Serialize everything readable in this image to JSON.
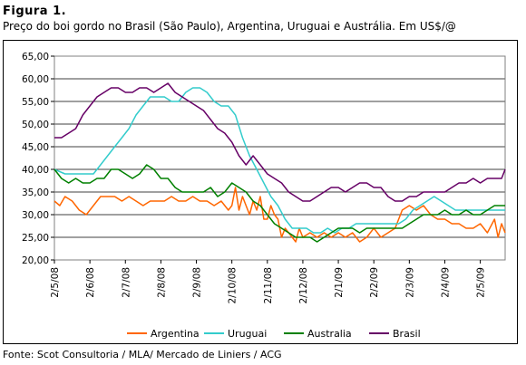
{
  "figure": {
    "label": "Figura 1.",
    "caption": "Preço do boi gordo no Brasil (São Paulo), Argentina, Uruguai e Austrália. Em US$/@",
    "source": "Fonte: Scot Consultoria / MLA/ Mercado de Liniers / ACG"
  },
  "chart_data": {
    "type": "line",
    "title": "",
    "xlabel": "",
    "ylabel": "",
    "ylim": [
      20,
      65
    ],
    "y_ticks": [
      "20,00",
      "25,00",
      "30,00",
      "35,00",
      "40,00",
      "45,00",
      "50,00",
      "55,00",
      "60,00",
      "65,00"
    ],
    "y_tick_values": [
      20,
      25,
      30,
      35,
      40,
      45,
      50,
      55,
      60,
      65
    ],
    "x_ticks": [
      "2/5/08",
      "2/6/08",
      "2/7/08",
      "2/8/08",
      "2/9/08",
      "2/10/08",
      "2/11/08",
      "2/12/08",
      "2/1/09",
      "2/2/09",
      "2/3/09",
      "2/4/09",
      "2/5/09"
    ],
    "x_tick_index": [
      0,
      1,
      2,
      3,
      4,
      5,
      6,
      7,
      8,
      9,
      10,
      11,
      12
    ],
    "x_range": [
      0,
      12.7
    ],
    "grid": "horizontal",
    "legend_position": "bottom",
    "series": [
      {
        "name": "Argentina",
        "color": "#FF6600",
        "x": [
          0,
          0.15,
          0.3,
          0.5,
          0.7,
          0.9,
          1.1,
          1.3,
          1.5,
          1.7,
          1.9,
          2.1,
          2.3,
          2.5,
          2.7,
          2.9,
          3.1,
          3.3,
          3.5,
          3.7,
          3.9,
          4.1,
          4.3,
          4.5,
          4.7,
          4.9,
          5.0,
          5.1,
          5.2,
          5.3,
          5.4,
          5.5,
          5.6,
          5.7,
          5.8,
          5.9,
          6.0,
          6.1,
          6.2,
          6.3,
          6.4,
          6.5,
          6.6,
          6.7,
          6.8,
          6.9,
          7.0,
          7.2,
          7.4,
          7.6,
          7.8,
          8.0,
          8.2,
          8.4,
          8.6,
          8.8,
          9.0,
          9.2,
          9.4,
          9.6,
          9.8,
          10.0,
          10.2,
          10.4,
          10.6,
          10.8,
          11.0,
          11.2,
          11.4,
          11.6,
          11.8,
          12.0,
          12.2,
          12.4,
          12.5,
          12.6,
          12.7
        ],
        "y": [
          33,
          32,
          34,
          33,
          31,
          30,
          32,
          34,
          34,
          34,
          33,
          34,
          33,
          32,
          33,
          33,
          33,
          34,
          33,
          33,
          34,
          33,
          33,
          32,
          33,
          31,
          32,
          36,
          31,
          34,
          32,
          30,
          33,
          31,
          34,
          29,
          29,
          32,
          30,
          29,
          25,
          27,
          26,
          25,
          24,
          27,
          25,
          26,
          25,
          26,
          25,
          26,
          25,
          26,
          24,
          25,
          27,
          25,
          26,
          27,
          31,
          32,
          31,
          32,
          30,
          29,
          29,
          28,
          28,
          27,
          27,
          28,
          26,
          29,
          25,
          28,
          26
        ]
      },
      {
        "name": "Uruguai",
        "color": "#33CCCC",
        "x": [
          0,
          0.3,
          0.6,
          0.9,
          1.1,
          1.3,
          1.5,
          1.7,
          1.9,
          2.1,
          2.3,
          2.5,
          2.7,
          2.9,
          3.1,
          3.3,
          3.5,
          3.7,
          3.9,
          4.1,
          4.3,
          4.5,
          4.7,
          4.9,
          5.1,
          5.3,
          5.5,
          5.7,
          5.9,
          6.1,
          6.3,
          6.5,
          6.7,
          6.9,
          7.1,
          7.3,
          7.5,
          7.7,
          7.9,
          8.1,
          8.3,
          8.5,
          8.7,
          8.9,
          9.1,
          9.3,
          9.5,
          9.7,
          9.9,
          10.1,
          10.3,
          10.5,
          10.7,
          10.9,
          11.1,
          11.3,
          11.5,
          11.7,
          11.9,
          12.1,
          12.3,
          12.5,
          12.7
        ],
        "y": [
          40,
          39,
          39,
          39,
          39,
          41,
          43,
          45,
          47,
          49,
          52,
          54,
          56,
          56,
          56,
          55,
          55,
          57,
          58,
          58,
          57,
          55,
          54,
          54,
          52,
          47,
          43,
          40,
          37,
          34,
          32,
          29,
          27,
          27,
          27,
          26,
          26,
          27,
          26,
          27,
          27,
          28,
          28,
          28,
          28,
          28,
          28,
          28,
          29,
          31,
          32,
          33,
          34,
          33,
          32,
          31,
          31,
          31,
          31,
          31,
          31,
          31,
          31
        ]
      },
      {
        "name": "Australia",
        "color": "#008000",
        "x": [
          0,
          0.2,
          0.4,
          0.6,
          0.8,
          1.0,
          1.2,
          1.4,
          1.6,
          1.8,
          2.0,
          2.2,
          2.4,
          2.6,
          2.8,
          3.0,
          3.2,
          3.4,
          3.6,
          3.8,
          4.0,
          4.2,
          4.4,
          4.6,
          4.8,
          5.0,
          5.2,
          5.4,
          5.6,
          5.8,
          6.0,
          6.2,
          6.4,
          6.6,
          6.8,
          7.0,
          7.2,
          7.4,
          7.6,
          7.8,
          8.0,
          8.2,
          8.4,
          8.6,
          8.8,
          9.0,
          9.2,
          9.4,
          9.6,
          9.8,
          10.0,
          10.2,
          10.4,
          10.6,
          10.8,
          11.0,
          11.2,
          11.4,
          11.6,
          11.8,
          12.0,
          12.2,
          12.4,
          12.6,
          12.7
        ],
        "y": [
          40,
          38,
          37,
          38,
          37,
          37,
          38,
          38,
          40,
          40,
          39,
          38,
          39,
          41,
          40,
          38,
          38,
          36,
          35,
          35,
          35,
          35,
          36,
          34,
          35,
          37,
          36,
          35,
          33,
          32,
          30,
          28,
          27,
          26,
          25,
          25,
          25,
          24,
          25,
          26,
          27,
          27,
          27,
          26,
          27,
          27,
          27,
          27,
          27,
          27,
          28,
          29,
          30,
          30,
          30,
          31,
          30,
          30,
          31,
          30,
          30,
          31,
          32,
          32,
          32
        ]
      },
      {
        "name": "Brasil",
        "color": "#660066",
        "x": [
          0,
          0.2,
          0.4,
          0.6,
          0.8,
          1.0,
          1.2,
          1.4,
          1.6,
          1.8,
          2.0,
          2.2,
          2.4,
          2.6,
          2.8,
          3.0,
          3.2,
          3.4,
          3.6,
          3.8,
          4.0,
          4.2,
          4.4,
          4.6,
          4.8,
          5.0,
          5.2,
          5.4,
          5.6,
          5.8,
          6.0,
          6.2,
          6.4,
          6.6,
          6.8,
          7.0,
          7.2,
          7.4,
          7.6,
          7.8,
          8.0,
          8.2,
          8.4,
          8.6,
          8.8,
          9.0,
          9.2,
          9.4,
          9.6,
          9.8,
          10.0,
          10.2,
          10.4,
          10.6,
          10.8,
          11.0,
          11.2,
          11.4,
          11.6,
          11.8,
          12.0,
          12.2,
          12.4,
          12.6,
          12.7
        ],
        "y": [
          47,
          47,
          48,
          49,
          52,
          54,
          56,
          57,
          58,
          58,
          57,
          57,
          58,
          58,
          57,
          58,
          59,
          57,
          56,
          55,
          54,
          53,
          51,
          49,
          48,
          46,
          43,
          41,
          43,
          41,
          39,
          38,
          37,
          35,
          34,
          33,
          33,
          34,
          35,
          36,
          36,
          35,
          36,
          37,
          37,
          36,
          36,
          34,
          33,
          33,
          34,
          34,
          35,
          35,
          35,
          35,
          36,
          37,
          37,
          38,
          37,
          38,
          38,
          38,
          40
        ]
      }
    ]
  }
}
